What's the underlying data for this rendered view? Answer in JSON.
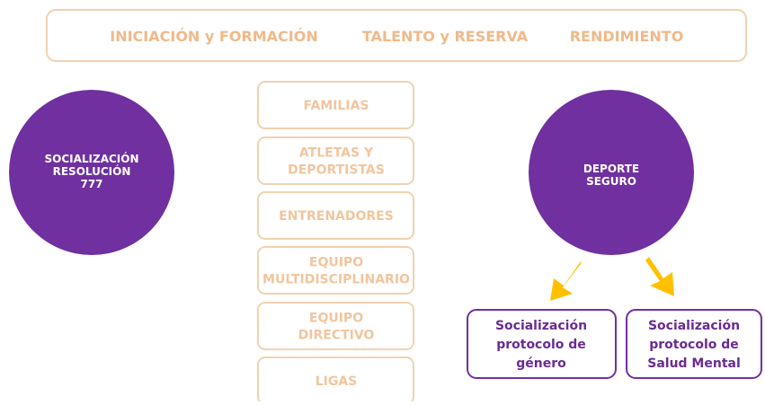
{
  "header": {
    "items": [
      "INICIACIÓN y FORMACIÓN",
      "TALENTO y RESERVA",
      "RENDIMIENTO"
    ]
  },
  "left_circle": {
    "lines": [
      "SOCIALIZACIÓN",
      "RESOLUCIÓN",
      "777"
    ]
  },
  "groups": [
    [
      "FAMILIAS"
    ],
    [
      "ATLETAS Y",
      "DEPORTISTAS"
    ],
    [
      "ENTRENADORES"
    ],
    [
      "EQUIPO",
      "MULTIDISCIPLINARIO"
    ],
    [
      "EQUIPO",
      "DIRECTIVO"
    ],
    [
      "LIGAS"
    ]
  ],
  "right_circle": {
    "lines": [
      "DEPORTE",
      "SEGURO"
    ]
  },
  "protocols": [
    [
      "Socialización",
      "protocolo de",
      "género"
    ],
    [
      "Socialización",
      "protocolo de",
      "Salud Mental"
    ]
  ]
}
